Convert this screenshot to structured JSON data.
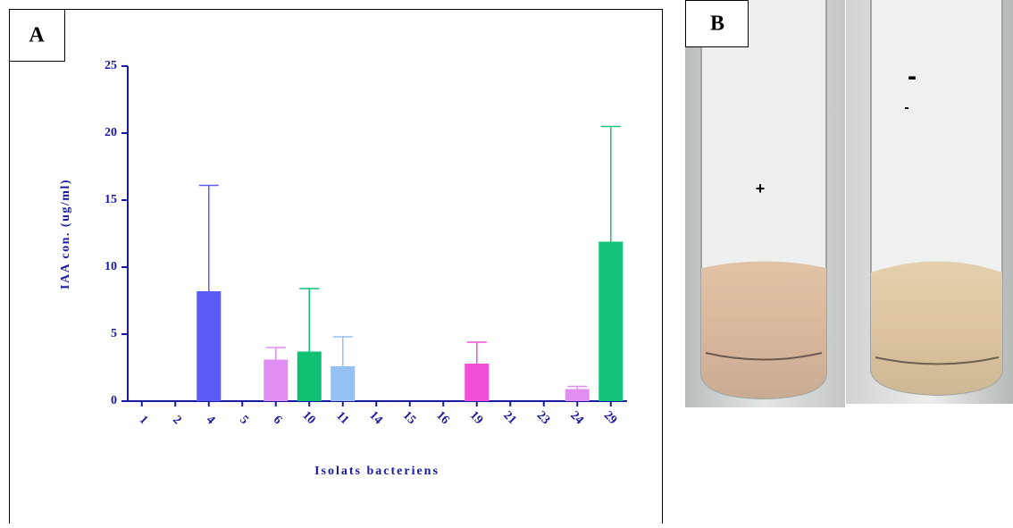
{
  "panel_a_label": "A",
  "chart_data": {
    "type": "bar",
    "x_label": "Isolats bacteriens",
    "y_label": "IAA con. (ug/ml)",
    "categories": [
      "1",
      "2",
      "4",
      "5",
      "6",
      "10",
      "11",
      "14",
      "15",
      "16",
      "19",
      "21",
      "23",
      "24",
      "29"
    ],
    "values": [
      0,
      0,
      8.2,
      0,
      3.1,
      3.7,
      2.6,
      0,
      0,
      0,
      2.8,
      0,
      0,
      0.9,
      11.9
    ],
    "errors": [
      0,
      0,
      7.9,
      0,
      0.9,
      4.7,
      2.2,
      0,
      0,
      0,
      1.6,
      0,
      0,
      0.2,
      8.6
    ],
    "colors": [
      null,
      null,
      "#5b5bf7",
      null,
      "#e08ef2",
      "#0fbf74",
      "#93c1f4",
      null,
      null,
      null,
      "#f24fd8",
      null,
      null,
      "#e08ef2",
      "#14c27a"
    ],
    "ylim": [
      0,
      25
    ],
    "yticks": [
      0,
      5,
      10,
      15,
      20,
      25
    ],
    "axis_color": "#1a1aa0"
  },
  "panel_b": {
    "label": "B",
    "marks": [
      "+",
      "-",
      "-"
    ]
  }
}
